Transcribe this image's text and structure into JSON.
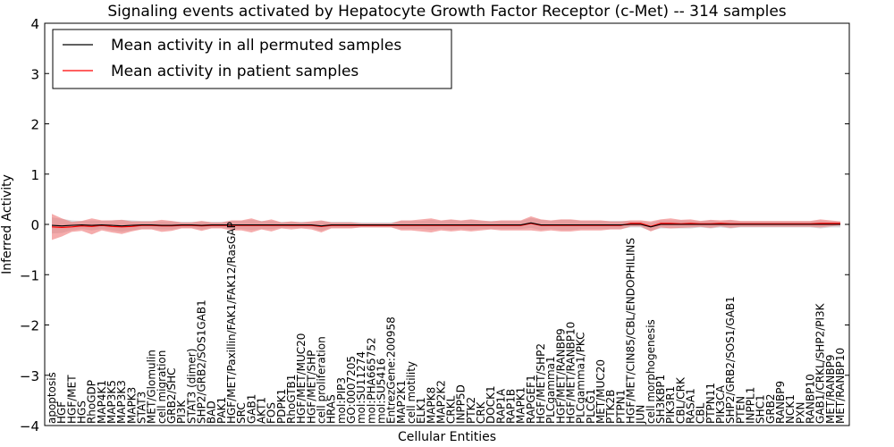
{
  "chart_data": {
    "type": "line",
    "title": "Signaling events activated by Hepatocyte Growth Factor Receptor (c-Met) -- 314 samples",
    "xlabel": "Cellular Entities",
    "ylabel": "Inferred Activity",
    "ylim": [
      -4,
      4
    ],
    "yticks": [
      4,
      3,
      2,
      1,
      0,
      -1,
      -2,
      -3,
      -4
    ],
    "ytick_labels": [
      "4",
      "3",
      "2",
      "1",
      "0",
      "−1",
      "−2",
      "−3",
      "−4"
    ],
    "legend_position": "upper-left",
    "legend": [
      {
        "label": "Mean activity in all permuted samples",
        "color": "#000000"
      },
      {
        "label": "Mean activity in patient samples",
        "color": "#ff0000"
      }
    ],
    "categories": [
      "apoptosis",
      "HGF",
      "HGF/MET",
      "HGS",
      "RhoGDP",
      "MAP4K1",
      "MAP3K5",
      "MAP3K3",
      "MAPK3",
      "STAT3",
      "MET/Glomulin",
      "cell migration",
      "GRB2/SHC",
      "PI3K",
      "STAT3 (dimer)",
      "SHP2/GRB2/SOS1GAB1",
      "BAD",
      "PAK1",
      "HGF/MET/Paxillin/FAK1/FAK12/RasGAP",
      "SRC",
      "GAB1",
      "AKT1",
      "FOS",
      "PDPK1",
      "RhoGTB1",
      "HGF/MET/MUC20",
      "HGF/MET/SHP",
      "cell proliferation",
      "HRAS",
      "mol:PIP3",
      "GO:0007205",
      "mol:SU11274",
      "mol:PHA665752",
      "mol:SU5416",
      "EntrezGene:200958",
      "MAP2K1",
      "cell motility",
      "ELK1",
      "MAPK8",
      "MAP2K2",
      "CRKL",
      "INPP5D",
      "PTK2",
      "CRK",
      "DOCK1",
      "RAP1A",
      "RAP1B",
      "MAPK1",
      "RAPGEF1",
      "HGF/MET/SHP2",
      "PLCgamma1",
      "HGF/MET/RANBP9",
      "HGF/MET/RANBP10",
      "PLCgamma1/PKC",
      "PLCG1",
      "MET/MUC20",
      "PTK2B",
      "PTPN1",
      "HGF/MET/CIN85/CBL/ENDOPHILINS",
      "JUN",
      "cell morphogenesis",
      "SH3KBP1",
      "PIK3R1",
      "CBL/CRK",
      "RASA1",
      "CBL",
      "PTPN11",
      "PIK3CA",
      "SHP2/GRB2/SOS1/GAB1",
      "PTEN",
      "INPPL1",
      "SHC1",
      "GRB2",
      "RANBP9",
      "NCK1",
      "PXN",
      "RANBP10",
      "GAB1/CRKL/SHP2/PI3K",
      "MET/RANBP9",
      "MET/RANBP10"
    ],
    "series": [
      {
        "name": "Mean activity in all permuted samples",
        "color": "#000000",
        "values": [
          -0.02,
          -0.03,
          -0.02,
          -0.01,
          -0.02,
          -0.01,
          -0.02,
          -0.03,
          -0.02,
          -0.01,
          -0.01,
          -0.02,
          -0.02,
          -0.01,
          -0.01,
          -0.02,
          -0.01,
          -0.01,
          -0.01,
          -0.01,
          -0.01,
          -0.01,
          -0.01,
          -0.01,
          -0.01,
          -0.01,
          -0.01,
          -0.03,
          -0.01,
          -0.01,
          -0.01,
          -0.01,
          -0.01,
          -0.01,
          -0.01,
          -0.01,
          -0.01,
          -0.01,
          -0.01,
          -0.01,
          -0.01,
          -0.01,
          -0.01,
          -0.01,
          -0.01,
          -0.01,
          -0.01,
          -0.01,
          0.03,
          -0.01,
          -0.01,
          -0.01,
          -0.01,
          -0.01,
          -0.01,
          -0.01,
          -0.01,
          -0.01,
          0.0,
          0.0,
          -0.05,
          0.0,
          0.0,
          0.0,
          0.0,
          0.0,
          0.0,
          0.0,
          0.0,
          0.0,
          0.0,
          0.0,
          0.0,
          0.0,
          0.0,
          0.0,
          0.0,
          0.0,
          0.0,
          0.0
        ]
      },
      {
        "name": "Mean activity in patient samples",
        "color": "#ff0000",
        "values": [
          -0.05,
          -0.06,
          -0.05,
          -0.03,
          -0.04,
          -0.02,
          -0.04,
          -0.05,
          -0.04,
          -0.02,
          -0.02,
          -0.03,
          -0.03,
          -0.02,
          -0.02,
          -0.03,
          -0.02,
          -0.02,
          -0.02,
          -0.02,
          -0.02,
          -0.02,
          -0.02,
          -0.02,
          -0.02,
          -0.02,
          -0.02,
          -0.04,
          -0.02,
          -0.02,
          -0.02,
          -0.02,
          -0.02,
          -0.02,
          -0.02,
          -0.02,
          -0.02,
          -0.02,
          -0.02,
          -0.02,
          -0.02,
          -0.02,
          -0.02,
          -0.02,
          -0.02,
          -0.02,
          -0.02,
          -0.02,
          0.02,
          -0.02,
          -0.02,
          -0.02,
          -0.02,
          -0.02,
          -0.02,
          -0.02,
          -0.02,
          -0.02,
          0.02,
          0.02,
          -0.04,
          0.02,
          0.02,
          0.01,
          0.02,
          0.01,
          0.01,
          0.02,
          0.01,
          0.01,
          0.01,
          0.01,
          0.01,
          0.01,
          0.01,
          0.01,
          0.01,
          0.02,
          0.02,
          0.02
        ],
        "band": [
          0.26,
          0.18,
          0.1,
          0.1,
          0.16,
          0.1,
          0.12,
          0.14,
          0.1,
          0.08,
          0.08,
          0.12,
          0.1,
          0.06,
          0.06,
          0.1,
          0.06,
          0.06,
          0.1,
          0.1,
          0.14,
          0.08,
          0.12,
          0.06,
          0.08,
          0.06,
          0.08,
          0.12,
          0.06,
          0.06,
          0.06,
          0.04,
          0.04,
          0.04,
          0.04,
          0.1,
          0.1,
          0.12,
          0.14,
          0.1,
          0.12,
          0.1,
          0.12,
          0.1,
          0.08,
          0.1,
          0.1,
          0.1,
          0.14,
          0.12,
          0.1,
          0.12,
          0.12,
          0.1,
          0.1,
          0.1,
          0.08,
          0.08,
          0.06,
          0.06,
          0.1,
          0.08,
          0.1,
          0.08,
          0.08,
          0.06,
          0.08,
          0.06,
          0.08,
          0.06,
          0.06,
          0.06,
          0.06,
          0.06,
          0.06,
          0.06,
          0.06,
          0.08,
          0.06,
          0.04
        ]
      }
    ],
    "permuted_band": [
      0.16,
      0.14,
      0.1,
      0.08,
      0.1,
      0.08,
      0.1,
      0.12,
      0.1,
      0.08,
      0.08,
      0.08,
      0.08,
      0.06,
      0.06,
      0.08,
      0.06,
      0.06,
      0.08,
      0.08,
      0.1,
      0.08,
      0.08,
      0.06,
      0.06,
      0.06,
      0.06,
      0.1,
      0.06,
      0.06,
      0.06,
      0.05,
      0.05,
      0.05,
      0.05,
      0.08,
      0.08,
      0.08,
      0.1,
      0.08,
      0.1,
      0.08,
      0.1,
      0.08,
      0.08,
      0.08,
      0.08,
      0.08,
      0.1,
      0.1,
      0.08,
      0.1,
      0.1,
      0.08,
      0.08,
      0.08,
      0.08,
      0.08,
      0.06,
      0.06,
      0.08,
      0.08,
      0.08,
      0.08,
      0.08,
      0.06,
      0.08,
      0.06,
      0.08,
      0.06,
      0.06,
      0.06,
      0.06,
      0.06,
      0.06,
      0.06,
      0.06,
      0.08,
      0.06,
      0.06
    ]
  }
}
